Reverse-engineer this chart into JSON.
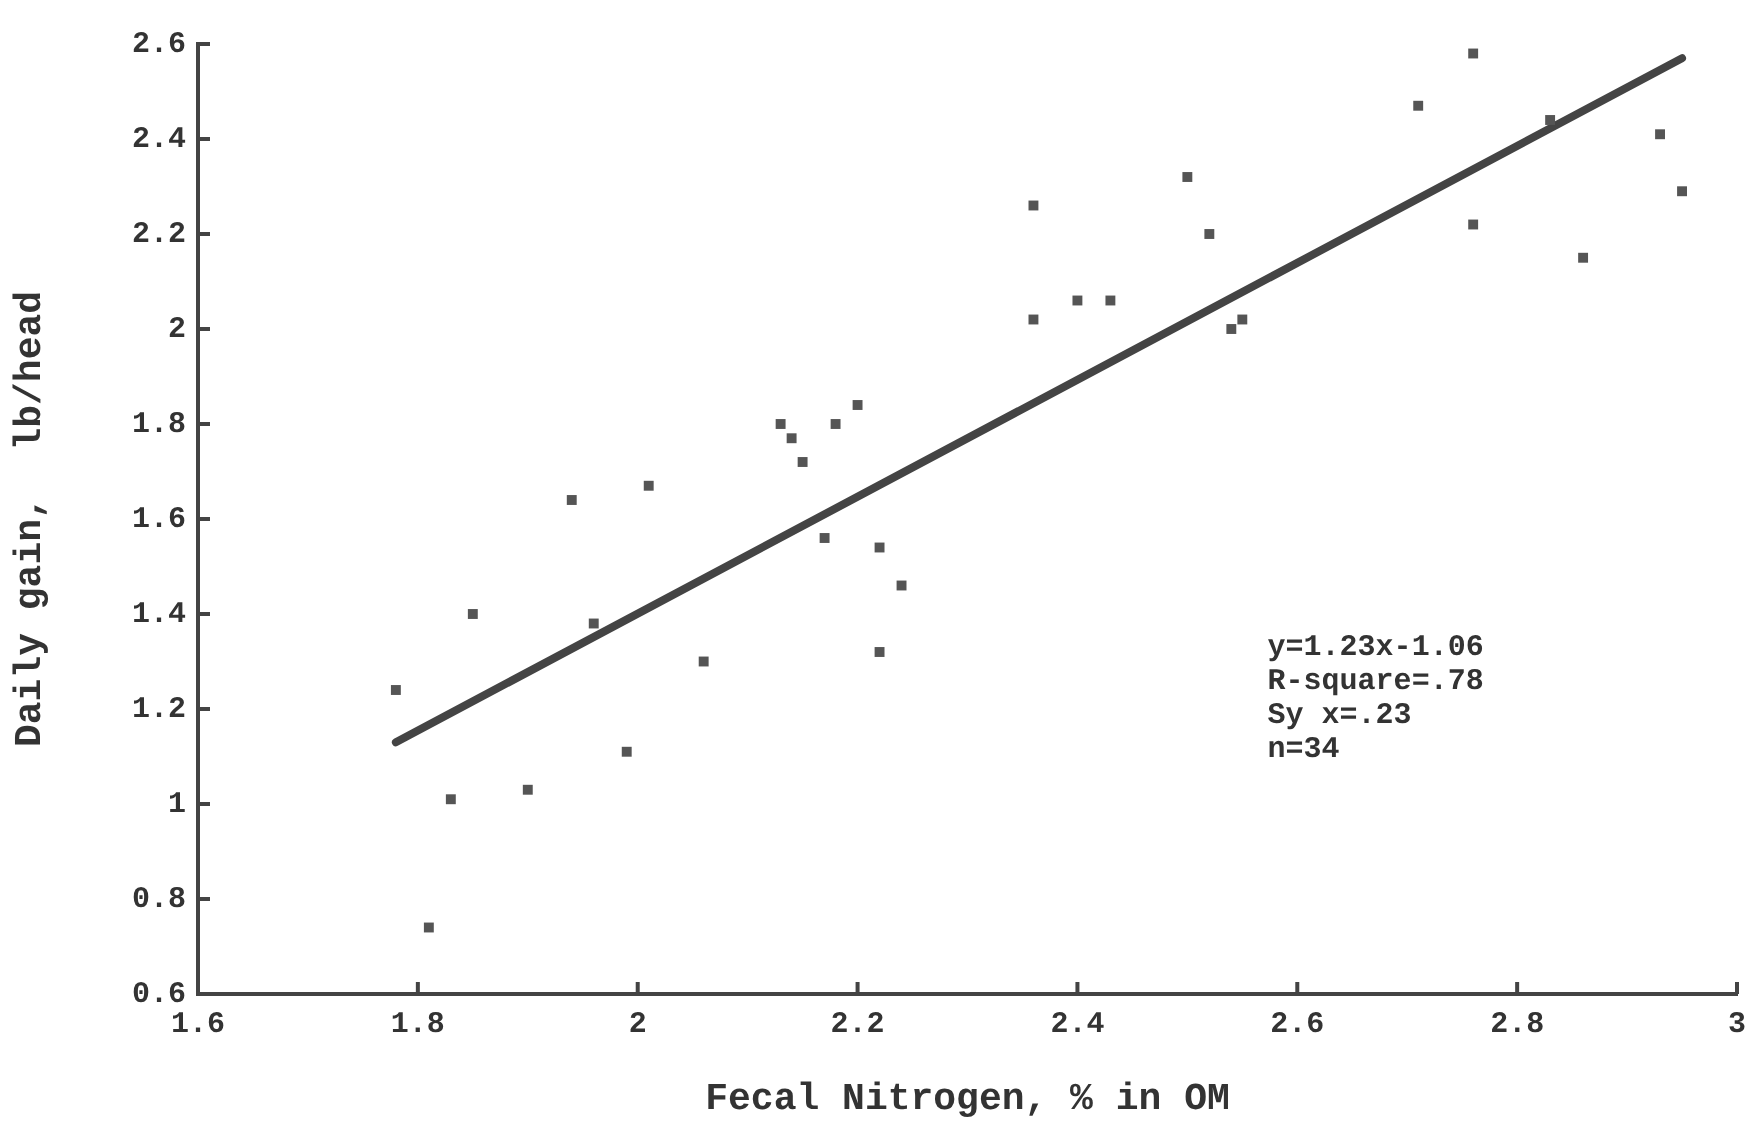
{
  "chart_data": {
    "type": "scatter",
    "xlabel": "Fecal Nitrogen, % in OM",
    "ylabel": "Daily gain,  lb/head",
    "xlim": [
      1.6,
      3
    ],
    "xticks": [
      1.6,
      1.8,
      2,
      2.2,
      2.4,
      2.6,
      2.8,
      3
    ],
    "ylim": [
      0.6,
      2.6
    ],
    "yticks": [
      0.6,
      0.8,
      1,
      1.2,
      1.4,
      1.6,
      1.8,
      2,
      2.2,
      2.4,
      2.6
    ],
    "grid": false,
    "legend": false,
    "marker": "square",
    "annotations": [
      "y=1.23x-1.06",
      "R-square=.78",
      "Sy x=.23",
      "n=34"
    ],
    "series": [
      {
        "color": "#555555",
        "x": [
          1.78,
          1.81,
          1.83,
          1.85,
          1.9,
          1.94,
          1.96,
          1.99,
          2.01,
          2.06,
          2.13,
          2.14,
          2.15,
          2.17,
          2.18,
          2.2,
          2.22,
          2.22,
          2.24,
          2.36,
          2.36,
          2.4,
          2.43,
          2.5,
          2.52,
          2.54,
          2.55,
          2.71,
          2.76,
          2.76,
          2.83,
          2.86,
          2.93,
          2.95
        ],
        "values": [
          1.24,
          0.74,
          1.01,
          1.4,
          1.03,
          1.64,
          1.38,
          1.11,
          1.67,
          1.3,
          1.8,
          1.77,
          1.72,
          1.56,
          1.8,
          1.84,
          1.54,
          1.32,
          1.46,
          2.26,
          2.02,
          2.06,
          2.06,
          2.32,
          2.2,
          2,
          2.02,
          2.47,
          2.58,
          2.22,
          2.44,
          2.15,
          2.41,
          2.29
        ]
      },
      {
        "type": "line",
        "marker": "none",
        "color": "#444444",
        "x": [
          1.78,
          2.95
        ],
        "values": [
          1.13,
          2.57
        ]
      }
    ]
  }
}
